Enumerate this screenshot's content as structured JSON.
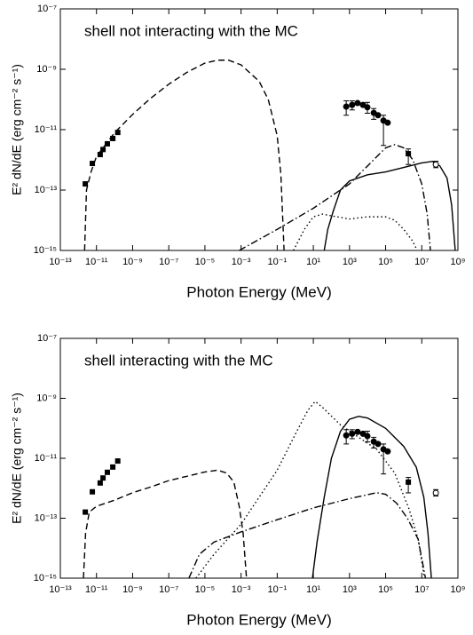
{
  "chart_data": [
    {
      "type": "line",
      "xscale": "log",
      "yscale": "log",
      "annotation": "shell not interacting with the MC",
      "x_label": "Photon Energy (MeV)",
      "y_label": "E² dN/dE (erg cm⁻² s⁻¹)",
      "xlim": [
        1e-13,
        1000000000.0
      ],
      "ylim": [
        1e-15,
        1e-07
      ],
      "xticks": [
        {
          "value": 1e-13,
          "label": "10⁻¹³"
        },
        {
          "value": 1e-11,
          "label": "10⁻¹¹"
        },
        {
          "value": 1e-09,
          "label": "10⁻⁹"
        },
        {
          "value": 1e-07,
          "label": "10⁻⁷"
        },
        {
          "value": 1e-05,
          "label": "10⁻⁵"
        },
        {
          "value": 0.001,
          "label": "10⁻³"
        },
        {
          "value": 0.1,
          "label": "10⁻¹"
        },
        {
          "value": 10,
          "label": "10¹"
        },
        {
          "value": 1000.0,
          "label": "10³"
        },
        {
          "value": 100000.0,
          "label": "10⁵"
        },
        {
          "value": 10000000.0,
          "label": "10⁷"
        },
        {
          "value": 1000000000.0,
          "label": "10⁹"
        }
      ],
      "yticks": [
        {
          "value": 1e-15,
          "label": "10⁻¹⁵"
        },
        {
          "value": 1e-13,
          "label": "10⁻¹³"
        },
        {
          "value": 1e-11,
          "label": "10⁻¹¹"
        },
        {
          "value": 1e-09,
          "label": "10⁻⁹"
        },
        {
          "value": 1e-07,
          "label": "10⁻⁷"
        }
      ],
      "series": [
        {
          "style": "dashed",
          "color": "#000000",
          "x": [
            2.2e-12,
            2.8e-12,
            5e-12,
            1e-11,
            1e-10,
            1e-09,
            1e-08,
            1e-07,
            1e-06,
            1e-05,
            5e-05,
            0.0002,
            0.001,
            0.01,
            0.032,
            0.1,
            0.16,
            0.24
          ],
          "values": [
            1e-15,
            1e-13,
            4e-13,
            1.3e-12,
            7.9e-12,
            3.2e-11,
            1.1e-10,
            3.2e-10,
            7.9e-10,
            1.6e-09,
            2e-09,
            2e-09,
            1.4e-09,
            4e-10,
            1e-10,
            6.3e-12,
            3.2e-13,
            1e-15
          ]
        },
        {
          "style": "dashdot",
          "color": "#000000",
          "x": [
            0.00079,
            0.1,
            10,
            1000.0,
            10000.0,
            100000.0,
            320000.0,
            1000000.0,
            3200000.0,
            10000000.0,
            20000000.0,
            30000000.0
          ],
          "values": [
            1e-15,
            5e-15,
            2.5e-14,
            1.6e-13,
            6.3e-13,
            2.5e-12,
            3.2e-12,
            2.5e-12,
            1e-12,
            1.6e-13,
            1.6e-14,
            1e-15
          ]
        },
        {
          "style": "dotted",
          "color": "#000000",
          "x": [
            0.79,
            3.2,
            10,
            32,
            100,
            1000.0,
            10000.0,
            100000.0,
            320000.0,
            1000000.0,
            3200000.0,
            5600000.0
          ],
          "values": [
            1e-15,
            5e-15,
            1.3e-14,
            1.6e-14,
            1.4e-14,
            1.1e-14,
            1.3e-14,
            1.3e-14,
            1e-14,
            5e-15,
            2e-15,
            1e-15
          ]
        },
        {
          "style": "solid",
          "color": "#000000",
          "x": [
            40,
            63,
            126,
            316,
            1000.0,
            10000.0,
            100000.0,
            1000000.0,
            10000000.0,
            40000000.0,
            100000000.0,
            250000000.0,
            450000000.0,
            710000000.0
          ],
          "values": [
            1e-15,
            5e-15,
            2e-14,
            1e-13,
            2e-13,
            3.2e-13,
            4e-13,
            5.6e-13,
            7.9e-13,
            8.9e-13,
            6.3e-13,
            2.5e-13,
            3.2e-14,
            1e-15
          ]
        },
        {
          "marker": "square",
          "color": "#000000",
          "x": [
            2.4e-12,
            5.9e-12,
            1.6e-11,
            2.3e-11,
            4e-11,
            8e-11,
            1.5e-10
          ],
          "values": [
            1.6e-13,
            7.6e-13,
            1.5e-12,
            2.2e-12,
            3.4e-12,
            5.1e-12,
            8.1e-12
          ]
        },
        {
          "marker": "circle",
          "color": "#000000",
          "x": [
            660,
            1400,
            2800,
            5600,
            9800,
            22000,
            38000,
            76000,
            130000
          ],
          "values": [
            5.8e-11,
            6.6e-11,
            7.6e-11,
            6.6e-11,
            5.5e-11,
            3.6e-11,
            3e-11,
            2e-11,
            1.7e-11
          ],
          "y_low": [
            3e-11,
            4.5e-11,
            null,
            null,
            3.5e-11,
            2.2e-11,
            1.5e-11,
            3e-12,
            null
          ],
          "y_high": [
            9e-11,
            9e-11,
            null,
            null,
            8e-11,
            5e-11,
            null,
            3e-11,
            null
          ]
        },
        {
          "marker": "square",
          "color": "#000000",
          "x": [
            1800000.0
          ],
          "values": [
            1.6e-12
          ],
          "y_low": [
            7e-13
          ],
          "y_high": [
            2.3e-12
          ]
        },
        {
          "marker": "open-circle",
          "color": "#000000",
          "x": [
            60000000.0
          ],
          "values": [
            7e-13
          ],
          "y_low": [
            5.5e-13
          ],
          "y_high": [
            9e-13
          ]
        }
      ]
    },
    {
      "type": "line",
      "xscale": "log",
      "yscale": "log",
      "annotation": "shell interacting with the MC",
      "x_label": "Photon Energy (MeV)",
      "y_label": "E² dN/dE (erg cm⁻² s⁻¹)",
      "xlim": [
        1e-13,
        1000000000.0
      ],
      "ylim": [
        1e-15,
        1e-07
      ],
      "xticks": [
        {
          "value": 1e-13,
          "label": "10⁻¹³"
        },
        {
          "value": 1e-11,
          "label": "10⁻¹¹"
        },
        {
          "value": 1e-09,
          "label": "10⁻⁹"
        },
        {
          "value": 1e-07,
          "label": "10⁻⁷"
        },
        {
          "value": 1e-05,
          "label": "10⁻⁵"
        },
        {
          "value": 0.001,
          "label": "10⁻³"
        },
        {
          "value": 0.1,
          "label": "10⁻¹"
        },
        {
          "value": 10,
          "label": "10¹"
        },
        {
          "value": 1000.0,
          "label": "10³"
        },
        {
          "value": 100000.0,
          "label": "10⁵"
        },
        {
          "value": 10000000.0,
          "label": "10⁷"
        },
        {
          "value": 1000000000.0,
          "label": "10⁹"
        }
      ],
      "yticks": [
        {
          "value": 1e-15,
          "label": "10⁻¹⁵"
        },
        {
          "value": 1e-13,
          "label": "10⁻¹³"
        },
        {
          "value": 1e-11,
          "label": "10⁻¹¹"
        },
        {
          "value": 1e-09,
          "label": "10⁻⁹"
        },
        {
          "value": 1e-07,
          "label": "10⁻⁷"
        }
      ],
      "series": [
        {
          "style": "dashed",
          "color": "#000000",
          "x": [
            1.9e-12,
            2.5e-12,
            4e-12,
            1e-11,
            1e-10,
            1e-09,
            1e-08,
            1e-07,
            1e-06,
            1e-05,
            5e-05,
            0.00016,
            0.0004,
            0.00079,
            0.0013,
            0.002
          ],
          "values": [
            1e-15,
            3.2e-14,
            1.6e-13,
            2.5e-13,
            4e-13,
            7.1e-13,
            1.1e-12,
            1.8e-12,
            2.5e-12,
            3.5e-12,
            4e-12,
            3.2e-12,
            1.6e-12,
            2.5e-13,
            3.2e-14,
            1e-15
          ]
        },
        {
          "style": "dashdot",
          "color": "#000000",
          "x": [
            1.3e-06,
            5e-06,
            3.2e-05,
            0.001,
            0.1,
            10,
            1000.0,
            32000.0,
            100000.0,
            400000.0,
            1600000.0,
            6300000.0,
            16000000.0
          ],
          "values": [
            1e-15,
            6.3e-15,
            1.6e-14,
            3.5e-14,
            8.9e-14,
            2.2e-13,
            4.5e-13,
            7.1e-13,
            6.3e-13,
            3.2e-13,
            1e-13,
            2e-14,
            1e-15
          ]
        },
        {
          "style": "dotted",
          "color": "#000000",
          "x": [
            3.2e-06,
            3.2e-05,
            0.001,
            0.1,
            1,
            5,
            12.6,
            32,
            316,
            3200,
            32000,
            320000,
            2000000.0,
            6300000.0,
            14000000.0
          ],
          "values": [
            1e-15,
            6.3e-15,
            6.3e-14,
            4e-12,
            6.3e-11,
            4e-10,
            7.9e-10,
            5e-10,
            1.3e-10,
            5e-11,
            2e-11,
            3.2e-12,
            2e-13,
            2e-14,
            1e-15
          ]
        },
        {
          "style": "solid",
          "color": "#000000",
          "x": [
            8.9,
            16,
            40,
            100,
            316,
            1000.0,
            3200.0,
            10000.0,
            100000.0,
            1000000.0,
            5000000.0,
            13000000.0,
            22000000.0,
            34000000.0
          ],
          "values": [
            1e-15,
            1.6e-14,
            5e-13,
            1e-11,
            7.9e-11,
            2e-10,
            2.5e-10,
            2.2e-10,
            1e-10,
            2.5e-11,
            5e-12,
            5e-13,
            3.2e-14,
            1e-15
          ]
        },
        {
          "marker": "square",
          "color": "#000000",
          "x": [
            2.4e-12,
            5.9e-12,
            1.6e-11,
            2.3e-11,
            4e-11,
            8e-11,
            1.5e-10
          ],
          "values": [
            1.6e-13,
            7.6e-13,
            1.5e-12,
            2.2e-12,
            3.4e-12,
            5.1e-12,
            8.1e-12
          ]
        },
        {
          "marker": "circle",
          "color": "#000000",
          "x": [
            660,
            1400,
            2800,
            5600,
            9800,
            22000,
            38000,
            76000,
            130000
          ],
          "values": [
            5.8e-11,
            6.6e-11,
            7.6e-11,
            6.6e-11,
            5.5e-11,
            3.6e-11,
            3e-11,
            2e-11,
            1.7e-11
          ],
          "y_low": [
            3e-11,
            4.5e-11,
            null,
            null,
            3.5e-11,
            2.2e-11,
            1.5e-11,
            3e-12,
            null
          ],
          "y_high": [
            9e-11,
            9e-11,
            null,
            null,
            8e-11,
            5e-11,
            null,
            3e-11,
            null
          ]
        },
        {
          "marker": "square",
          "color": "#000000",
          "x": [
            1800000.0
          ],
          "values": [
            1.6e-12
          ],
          "y_low": [
            7e-13
          ],
          "y_high": [
            2.3e-12
          ]
        },
        {
          "marker": "open-circle",
          "color": "#000000",
          "x": [
            60000000.0
          ],
          "values": [
            7e-13
          ],
          "y_low": [
            5.5e-13
          ],
          "y_high": [
            9e-13
          ]
        }
      ]
    }
  ]
}
